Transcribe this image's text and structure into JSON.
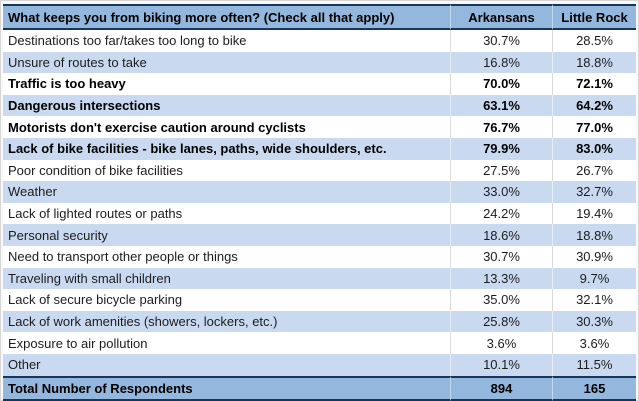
{
  "table": {
    "header": {
      "question": "What keeps you from biking more often? (Check all that apply)",
      "arkansans": "Arkansans",
      "little_rock": "Little Rock"
    },
    "rows": [
      {
        "label": "Destinations too far/takes too long to bike",
        "arkansans": "30.7%",
        "little_rock": "28.5%",
        "bold": false
      },
      {
        "label": "Unsure of routes to take",
        "arkansans": "16.8%",
        "little_rock": "18.8%",
        "bold": false
      },
      {
        "label": "Traffic is too heavy",
        "arkansans": "70.0%",
        "little_rock": "72.1%",
        "bold": true
      },
      {
        "label": "Dangerous intersections",
        "arkansans": "63.1%",
        "little_rock": "64.2%",
        "bold": true
      },
      {
        "label": "Motorists don't exercise caution around cyclists",
        "arkansans": "76.7%",
        "little_rock": "77.0%",
        "bold": true
      },
      {
        "label": "Lack of bike facilities - bike lanes, paths, wide shoulders, etc.",
        "arkansans": "79.9%",
        "little_rock": "83.0%",
        "bold": true
      },
      {
        "label": "Poor condition of bike facilities",
        "arkansans": "27.5%",
        "little_rock": "26.7%",
        "bold": false
      },
      {
        "label": "Weather",
        "arkansans": "33.0%",
        "little_rock": "32.7%",
        "bold": false
      },
      {
        "label": "Lack of lighted routes or paths",
        "arkansans": "24.2%",
        "little_rock": "19.4%",
        "bold": false
      },
      {
        "label": "Personal security",
        "arkansans": "18.6%",
        "little_rock": "18.8%",
        "bold": false
      },
      {
        "label": "Need to transport other people or things",
        "arkansans": "30.7%",
        "little_rock": "30.9%",
        "bold": false
      },
      {
        "label": "Traveling with small children",
        "arkansans": "13.3%",
        "little_rock": "9.7%",
        "bold": false
      },
      {
        "label": "Lack of secure bicycle parking",
        "arkansans": "35.0%",
        "little_rock": "32.1%",
        "bold": false
      },
      {
        "label": "Lack of work amenities (showers, lockers, etc.)",
        "arkansans": "25.8%",
        "little_rock": "30.3%",
        "bold": false
      },
      {
        "label": "Exposure to air pollution",
        "arkansans": "3.6%",
        "little_rock": "3.6%",
        "bold": false
      },
      {
        "label": "Other",
        "arkansans": "10.1%",
        "little_rock": "11.5%",
        "bold": false
      }
    ],
    "total": {
      "label": "Total Number of Respondents",
      "arkansans": "894",
      "little_rock": "165"
    }
  },
  "colors": {
    "header_fill": "#94b7de",
    "stripe_fill": "#c9daf0",
    "white_fill": "#ffffff",
    "navy_border": "#17365d",
    "gridline": "#dadada",
    "text": "#000000"
  },
  "chart_data": {
    "type": "table",
    "title": "What keeps you from biking more often? (Check all that apply)",
    "columns": [
      "What keeps you from biking more often? (Check all that apply)",
      "Arkansans",
      "Little Rock"
    ],
    "categories": [
      "Destinations too far/takes too long to bike",
      "Unsure of routes to take",
      "Traffic is too heavy",
      "Dangerous intersections",
      "Motorists don't exercise caution around cyclists",
      "Lack of bike facilities - bike lanes, paths, wide shoulders, etc.",
      "Poor condition of bike facilities",
      "Weather",
      "Lack of lighted routes or paths",
      "Personal security",
      "Need to transport other people or things",
      "Traveling with small children",
      "Lack of secure bicycle parking",
      "Lack of work amenities (showers, lockers, etc.)",
      "Exposure to air pollution",
      "Other"
    ],
    "series": [
      {
        "name": "Arkansans",
        "unit": "%",
        "values": [
          30.7,
          16.8,
          70.0,
          63.1,
          76.7,
          79.9,
          27.5,
          33.0,
          24.2,
          18.6,
          30.7,
          13.3,
          35.0,
          25.8,
          3.6,
          10.1
        ]
      },
      {
        "name": "Little Rock",
        "unit": "%",
        "values": [
          28.5,
          18.8,
          72.1,
          64.2,
          77.0,
          83.0,
          26.7,
          32.7,
          19.4,
          18.8,
          30.9,
          9.7,
          32.1,
          30.3,
          3.6,
          11.5
        ]
      }
    ],
    "emphasized_rows": [
      "Traffic is too heavy",
      "Dangerous intersections",
      "Motorists don't exercise caution around cyclists",
      "Lack of bike facilities - bike lanes, paths, wide shoulders, etc."
    ],
    "totals": {
      "label": "Total Number of Respondents",
      "Arkansans": 894,
      "Little Rock": 165
    }
  }
}
